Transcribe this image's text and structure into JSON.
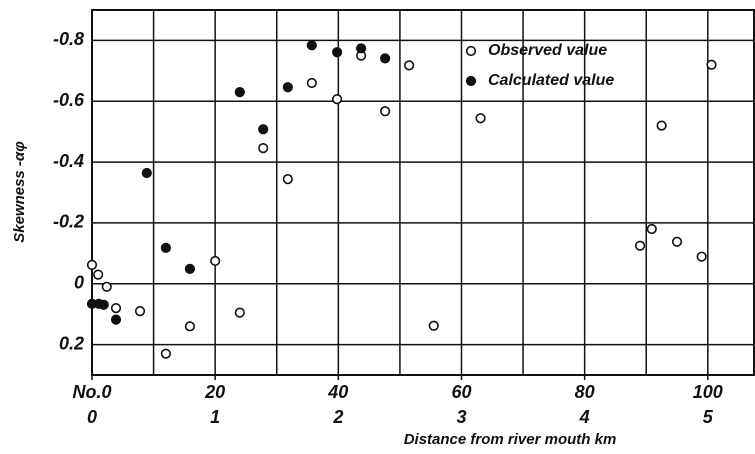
{
  "chart_data": {
    "type": "scatter",
    "x_label": "Distance from river mouth     km",
    "y_label": "Skewness -αφ",
    "xlim": [
      0,
      107.5
    ],
    "ylim": [
      0.3,
      -0.9
    ],
    "xticks": [
      {
        "value": 0,
        "label": "No.0"
      },
      20,
      40,
      60,
      80,
      100
    ],
    "x_station_labels": [
      "0",
      "1",
      "2",
      "3",
      "4",
      "5"
    ],
    "x_grid_lines": [
      10,
      20,
      30,
      40,
      50,
      60,
      70,
      80,
      90,
      100
    ],
    "yticks": [
      -0.8,
      -0.6,
      -0.4,
      -0.2,
      0,
      0.2
    ],
    "grid": true,
    "series": [
      {
        "name": "Observed value",
        "color": "#111111",
        "filled": false,
        "x": [
          0,
          1,
          2.4,
          3.9,
          7.8,
          12,
          15.9,
          20,
          24,
          27.8,
          31.8,
          35.7,
          39.8,
          43.7,
          47.6,
          51.5,
          55.5,
          63.1,
          89,
          90.9,
          92.5,
          95,
          99,
          100.6
        ],
        "values": [
          -0.062,
          -0.03,
          0.01,
          0.08,
          0.09,
          0.23,
          0.14,
          -0.075,
          0.095,
          -0.446,
          -0.344,
          -0.66,
          -0.607,
          -0.75,
          -0.567,
          -0.718,
          0.138,
          -0.544,
          -0.125,
          -0.18,
          -0.52,
          -0.138,
          -0.089,
          -0.72
        ]
      },
      {
        "name": "Calculated value",
        "color": "#111111",
        "filled": true,
        "x": [
          0,
          1.1,
          1.9,
          3.9,
          8.9,
          12,
          15.9,
          24,
          27.8,
          31.8,
          35.7,
          39.8,
          43.7,
          47.6
        ],
        "values": [
          0.066,
          0.066,
          0.069,
          0.118,
          -0.364,
          -0.118,
          -0.049,
          -0.63,
          -0.508,
          -0.646,
          -0.784,
          -0.761,
          -0.774,
          -0.741
        ]
      }
    ]
  }
}
